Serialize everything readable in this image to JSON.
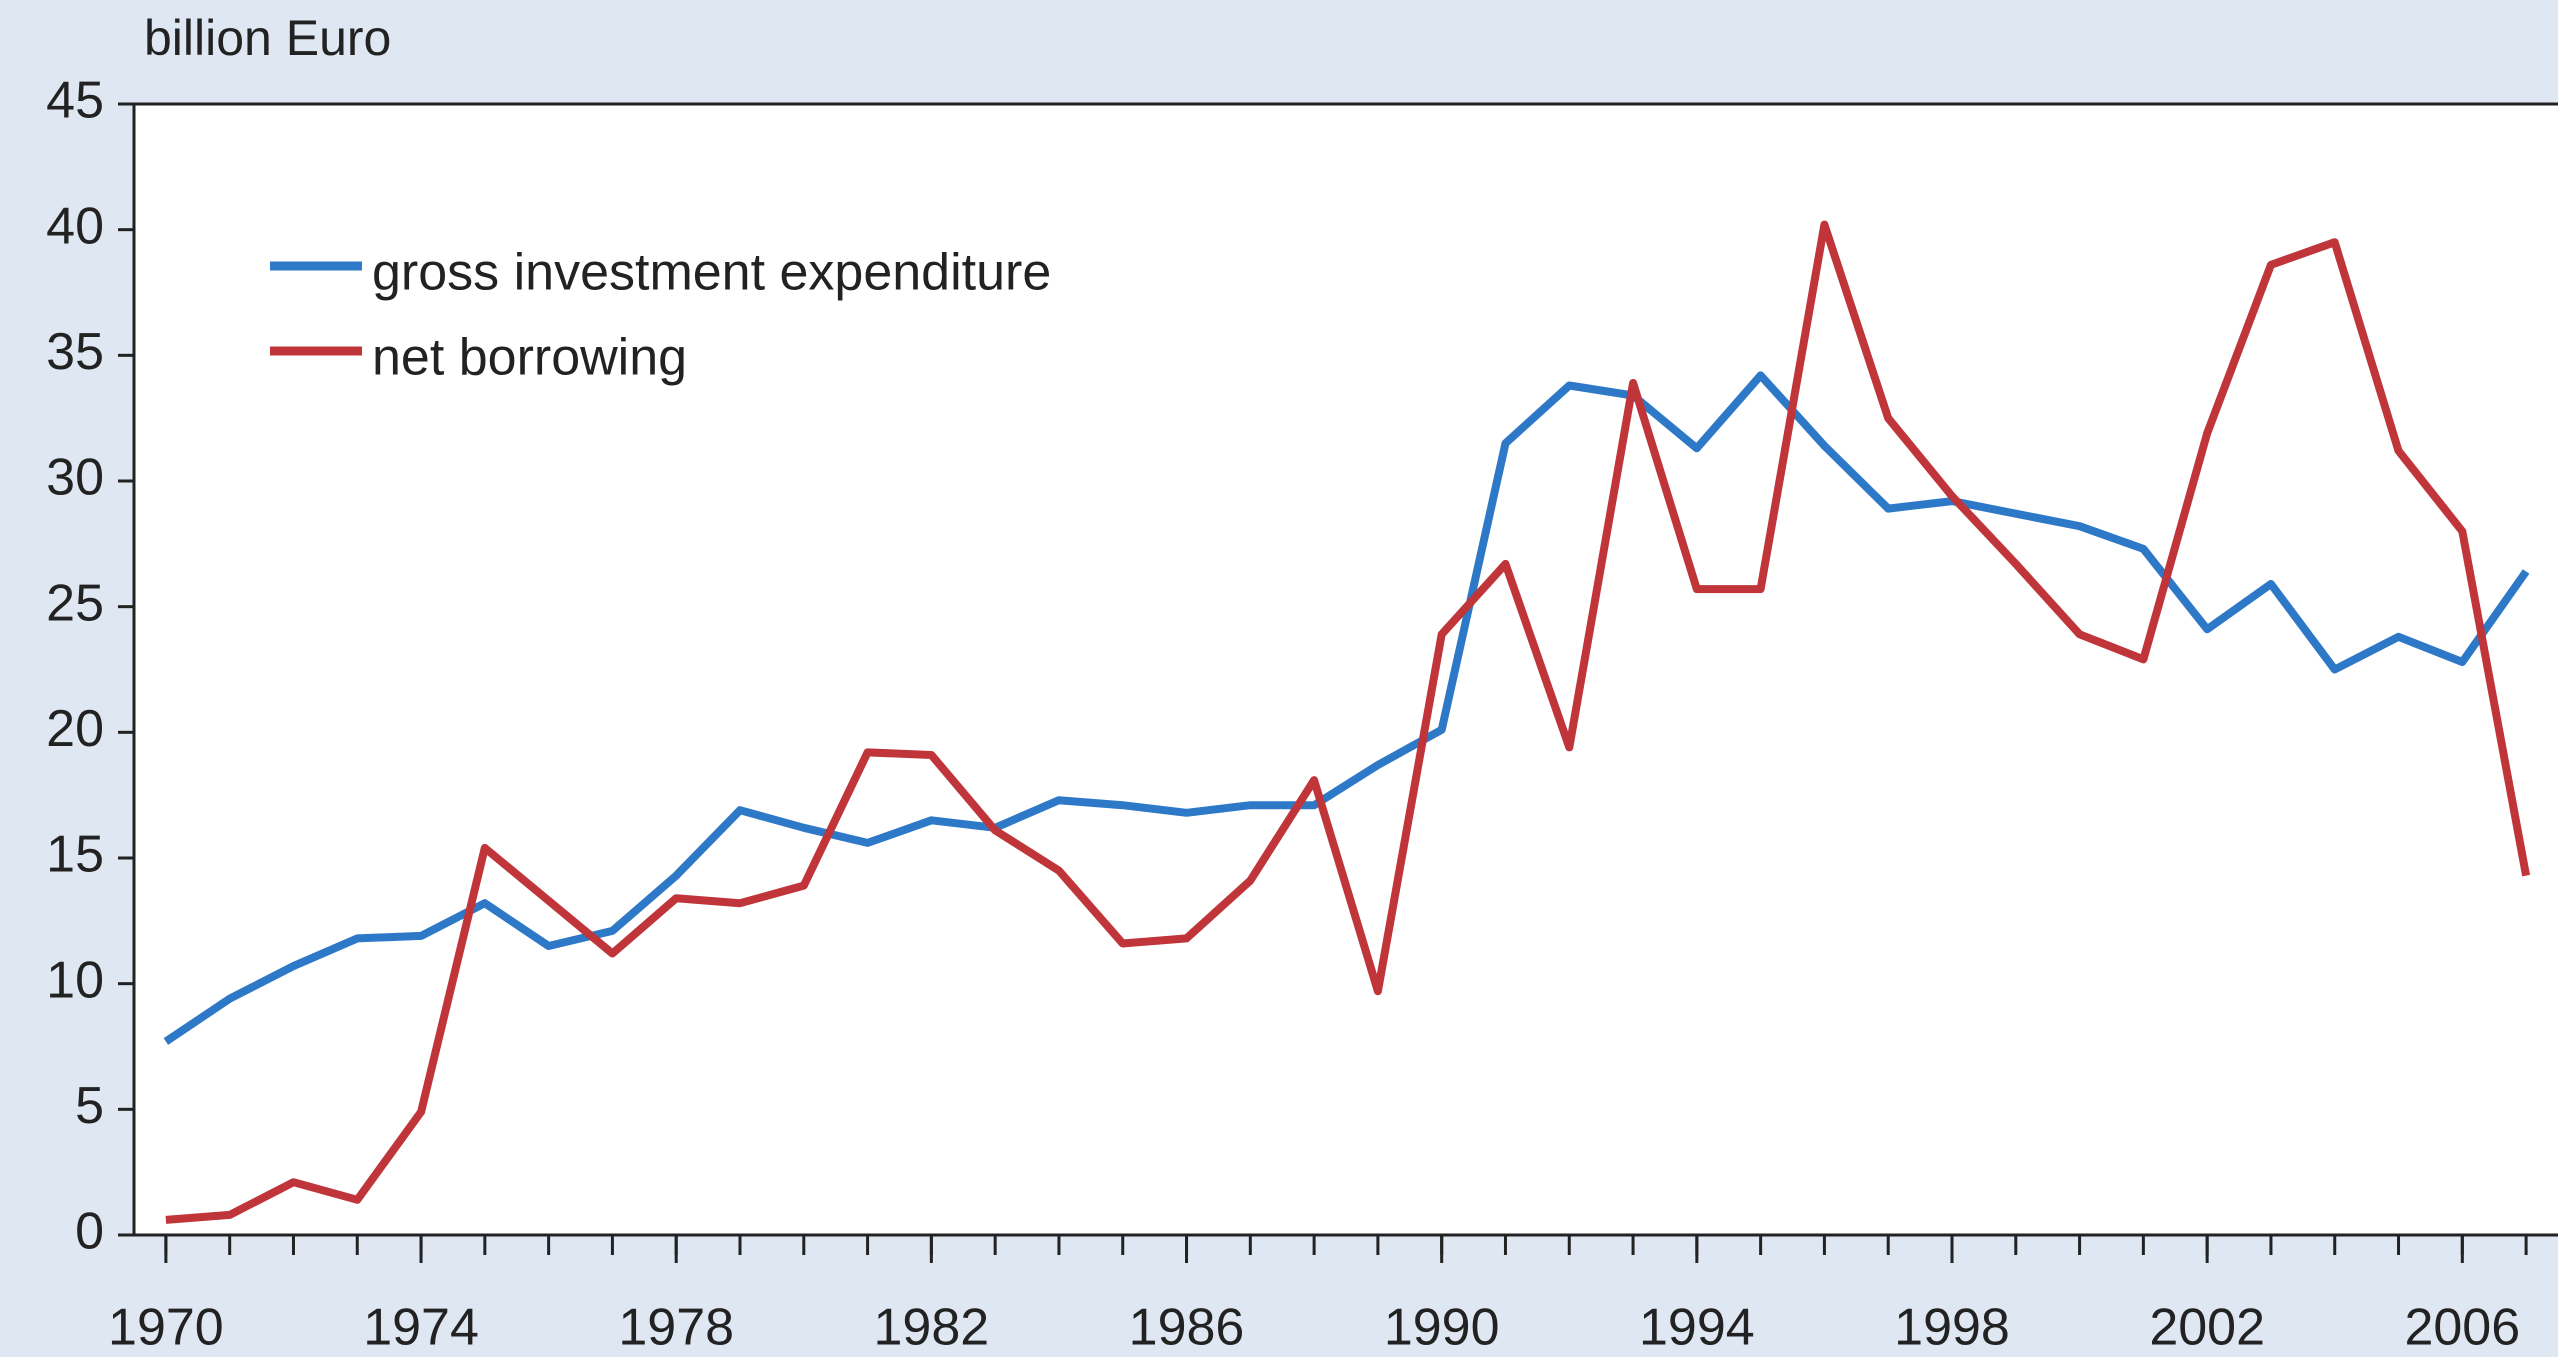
{
  "chart_data": {
    "type": "line",
    "y_axis_label": "billion Euro",
    "x": [
      1970,
      1971,
      1972,
      1973,
      1974,
      1975,
      1976,
      1977,
      1978,
      1979,
      1980,
      1981,
      1982,
      1983,
      1984,
      1985,
      1986,
      1987,
      1988,
      1989,
      1990,
      1991,
      1992,
      1993,
      1994,
      1995,
      1996,
      1997,
      1998,
      1999,
      2000,
      2001,
      2002,
      2003,
      2004,
      2005,
      2006,
      2007
    ],
    "series": [
      {
        "name": "gross investment expenditure",
        "color": "#2e78c8",
        "values": [
          7.7,
          9.4,
          10.7,
          11.8,
          11.9,
          13.2,
          11.5,
          12.1,
          14.3,
          16.9,
          16.2,
          15.6,
          16.5,
          16.2,
          17.3,
          17.1,
          16.8,
          17.1,
          17.1,
          18.7,
          20.1,
          31.5,
          33.8,
          33.4,
          31.3,
          34.2,
          31.4,
          28.9,
          29.2,
          28.7,
          28.2,
          27.3,
          24.1,
          25.9,
          22.5,
          23.8,
          22.8,
          26.4
        ]
      },
      {
        "name": "net borrowing",
        "color": "#c0353a",
        "values": [
          0.6,
          0.8,
          2.1,
          1.4,
          4.9,
          15.4,
          13.3,
          11.2,
          13.4,
          13.2,
          13.9,
          19.2,
          19.1,
          16.1,
          14.5,
          11.6,
          11.8,
          14.1,
          18.1,
          9.7,
          23.9,
          26.7,
          19.4,
          33.9,
          25.7,
          25.7,
          40.2,
          32.5,
          29.4,
          26.7,
          23.9,
          22.9,
          31.9,
          38.6,
          39.5,
          31.2,
          28.0,
          14.3
        ]
      }
    ],
    "xlim": [
      1969.5,
      2007.5
    ],
    "xticks": [
      1970,
      1974,
      1978,
      1982,
      1986,
      1990,
      1994,
      1998,
      2002,
      2006
    ],
    "ylim": [
      0,
      45
    ],
    "yticks": [
      0,
      5,
      10,
      15,
      20,
      25,
      30,
      35,
      40,
      45
    ],
    "legend": "upper left"
  }
}
